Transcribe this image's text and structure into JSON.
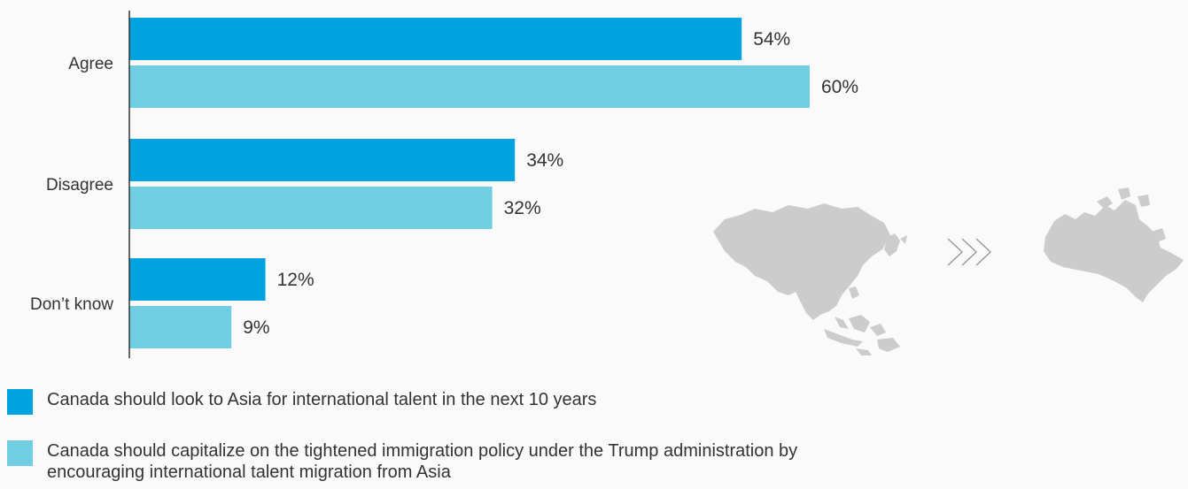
{
  "chart_data": {
    "type": "bar",
    "orientation": "horizontal",
    "categories": [
      "Agree",
      "Disagree",
      "Don’t know"
    ],
    "series": [
      {
        "name": "Canada should look to Asia for international talent in the next 10 years",
        "values": [
          54,
          34,
          12
        ],
        "labels": [
          "54%",
          "34%",
          "12%"
        ],
        "color": "#00a3e0"
      },
      {
        "name": "Canada should capitalize on the tightened immigration policy under the Trump administration by encouraging international talent migration from Asia",
        "values": [
          60,
          32,
          9
        ],
        "labels": [
          "60%",
          "32%",
          "9%"
        ],
        "color": "#71cde2"
      }
    ],
    "unit": "%",
    "xlim": [
      0,
      100
    ],
    "grid": false,
    "legend_position": "bottom-left"
  },
  "decorations": {
    "arrow_glyph": "›››",
    "map_color": "#cccccc",
    "icons": [
      "asia-map-icon",
      "chevron-arrows-icon",
      "canada-map-icon"
    ]
  }
}
